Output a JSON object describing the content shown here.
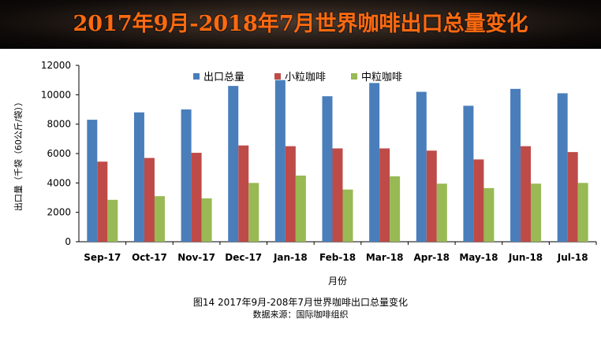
{
  "banner": {
    "title": "2017年9月-2018年7月世界咖啡出口总量变化"
  },
  "caption": {
    "figure": "图14 2017年9月-208年7月世界咖啡出口总量变化",
    "source": "数据来源：国际咖啡组织"
  },
  "colors": {
    "series1": "#4a7ebb",
    "series2": "#be4b48",
    "series3": "#98b954",
    "banner_text": "#ff6a10"
  },
  "chart_data": {
    "type": "bar",
    "title": "",
    "xlabel": "月份",
    "ylabel": "出口量（千袋（60公斤/袋））",
    "ylim": [
      0,
      12000
    ],
    "yticks": [
      0,
      2000,
      4000,
      6000,
      8000,
      10000,
      12000
    ],
    "categories": [
      "Sep-17",
      "Oct-17",
      "Nov-17",
      "Dec-17",
      "Jan-18",
      "Feb-18",
      "Mar-18",
      "Apr-18",
      "May-18",
      "Jun-18",
      "Jul-18"
    ],
    "legend_position": "top-center",
    "grid": false,
    "series": [
      {
        "name": "出口总量",
        "color": "#4a7ebb",
        "values": [
          8300,
          8800,
          9000,
          10600,
          11000,
          9900,
          10800,
          10200,
          9250,
          10400,
          10100
        ]
      },
      {
        "name": "小粒咖啡",
        "color": "#be4b48",
        "values": [
          5450,
          5700,
          6050,
          6550,
          6500,
          6350,
          6350,
          6200,
          5600,
          6500,
          6100
        ]
      },
      {
        "name": "中粒咖啡",
        "color": "#98b954",
        "values": [
          2850,
          3100,
          2950,
          4000,
          4500,
          3550,
          4450,
          3950,
          3650,
          3950,
          4000
        ]
      }
    ]
  }
}
